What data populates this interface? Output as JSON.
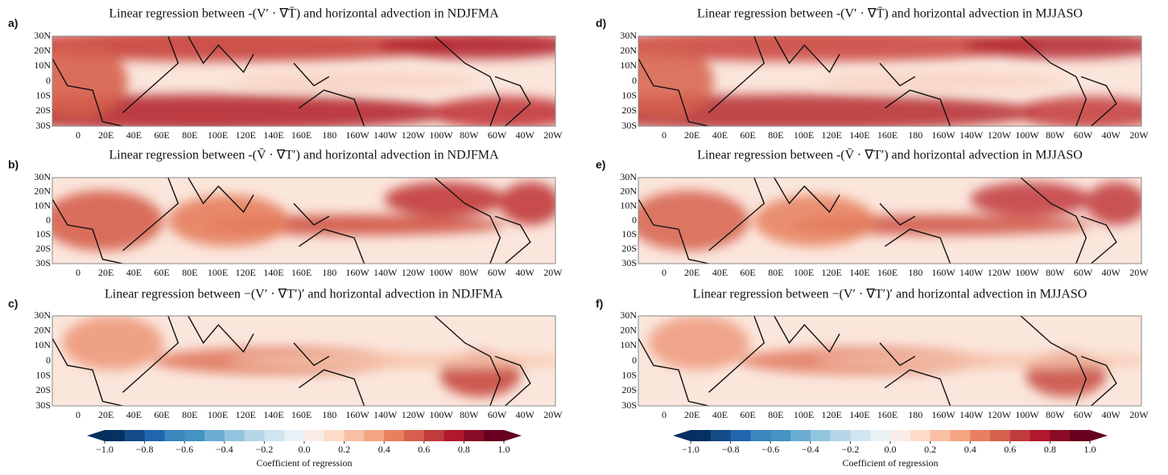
{
  "panels": [
    {
      "label": "a)",
      "title": "Linear regression between -(V′ · ∇T̄) and horizontal advection in NDJFMA"
    },
    {
      "label": "b)",
      "title": "Linear regression between -(V̄ · ∇T′) and horizontal advection in NDJFMA"
    },
    {
      "label": "c)",
      "title": "Linear regression between −(V′ · ∇T′)′ and horizontal advection in NDJFMA"
    },
    {
      "label": "d)",
      "title": "Linear regression between -(V′ · ∇T̄) and horizontal advection in MJJASO"
    },
    {
      "label": "e)",
      "title": "Linear regression between -(V̄ · ∇T′) and horizontal advection in MJJASO"
    },
    {
      "label": "f)",
      "title": "Linear regression between −(V′ · ∇T′)′ and horizontal advection in MJJASO"
    }
  ],
  "lat_ticks": [
    "30N",
    "20N",
    "10N",
    "0",
    "10S",
    "20S",
    "30S"
  ],
  "lon_ticks": [
    "0",
    "20E",
    "40E",
    "60E",
    "80E",
    "100E",
    "120E",
    "140E",
    "160E",
    "180",
    "160W",
    "140W",
    "120W",
    "100W",
    "80W",
    "60W",
    "40W",
    "20W"
  ],
  "colorbar": {
    "label": "Coefficient of regression",
    "lim": [
      -1,
      1
    ],
    "ticks": [
      {
        "value": -1,
        "label": "−1.0"
      },
      {
        "value": -0.8,
        "label": "−0.8"
      },
      {
        "value": -0.6,
        "label": "−0.6"
      },
      {
        "value": -0.4,
        "label": "−0.4"
      },
      {
        "value": -0.2,
        "label": "−0.2"
      },
      {
        "value": 0,
        "label": "0.0"
      },
      0.2,
      0.4,
      0.6,
      0.8,
      {
        "value": 1,
        "label": "1.0"
      }
    ],
    "colors": [
      "#053061",
      "#134c87",
      "#2166ac",
      "#3a87bd",
      "#4393c3",
      "#6bacd1",
      "#92c5de",
      "#b6d7e8",
      "#d1e5f0",
      "#e9f1f6",
      "#f9ece6",
      "#fddbc7",
      "#f8bfa4",
      "#f4a582",
      "#e6805e",
      "#d6604d",
      "#c13b3c",
      "#b2182b",
      "#8a0b25",
      "#67001f"
    ]
  }
}
